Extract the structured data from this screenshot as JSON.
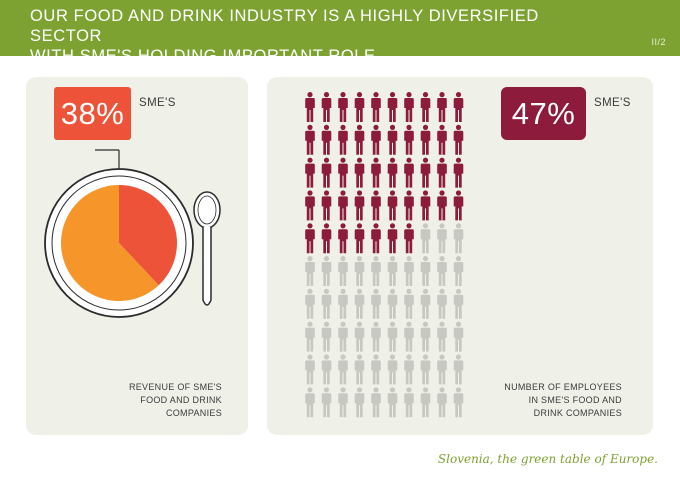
{
  "header": {
    "title": "OUR FOOD AND DRINK INDUSTRY IS A HIGHLY DIVERSIFIED SECTOR\nWITH SME'S HOLDING IMPORTANT ROLE.",
    "page_number": "II/2"
  },
  "revenue": {
    "percent_text": "38%",
    "label": "SME'S",
    "caption": "REVENUE OF SME'S\nFOOD AND DRINK\nCOMPANIES"
  },
  "employees": {
    "percent_text": "47%",
    "label": "SME'S",
    "caption": "NUMBER OF EMPLOYEES\nIN SME'S FOOD AND\nDRINK COMPANIES"
  },
  "tagline": "Slovenia, the green table of Europe.",
  "colors": {
    "header_green": "#7da232",
    "sme_revenue": "#ec5338",
    "other_revenue": "#f5952a",
    "sme_employees": "#8c1b3c",
    "other_employees": "#c8c8c2"
  },
  "icons": {
    "plate": "plate-icon",
    "spoon": "spoon-icon",
    "person": "person-icon"
  },
  "chart_data": [
    {
      "type": "pie",
      "categories": [
        "SME'S",
        ""
      ],
      "values": [
        38,
        62
      ],
      "start_angle": "12 o'clock, clockwise"
    },
    {
      "type": "pictogram",
      "categories": [
        "SME'S",
        ""
      ],
      "values": [
        47,
        53
      ],
      "grid": [
        10,
        10
      ],
      "fill_order": "rows top to bottom, left to right"
    }
  ]
}
